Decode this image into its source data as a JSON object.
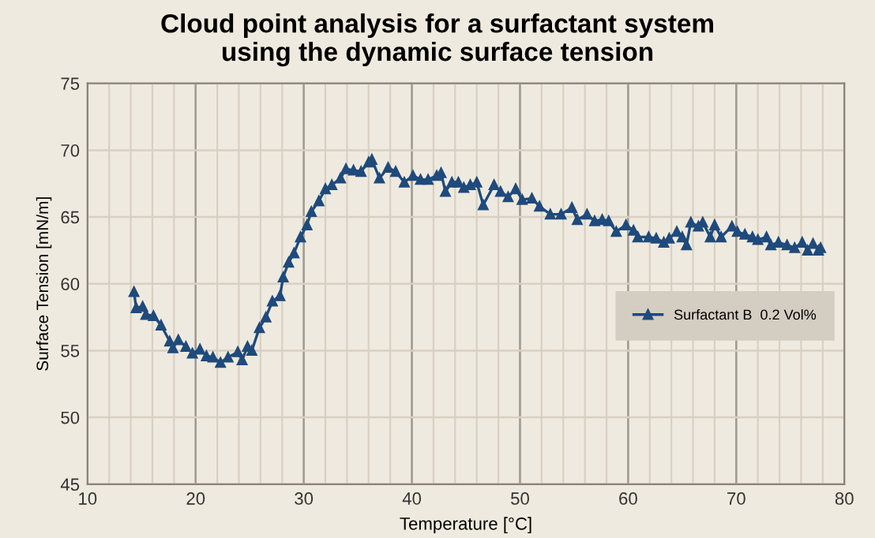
{
  "chart_data": {
    "type": "line",
    "title": "Cloud point analysis for a surfactant system\nusing the dynamic surface tension",
    "xlabel": "Temperature [°C]",
    "ylabel": "Surface Tension [mN/m]",
    "xlim": [
      10,
      80
    ],
    "xticks": [
      10,
      20,
      30,
      40,
      50,
      60,
      70,
      80
    ],
    "ylim": [
      45,
      75
    ],
    "yticks": [
      45,
      50,
      55,
      60,
      65,
      70,
      75
    ],
    "grid": true,
    "legend": "right",
    "marker": "triangle",
    "line_style": "solid",
    "series": [
      {
        "name": "Surfactant B  0.2 Vol%",
        "color": "#1f4a7c",
        "x": [
          14.3,
          14.5,
          15.1,
          15.4,
          16.1,
          16.8,
          17.6,
          17.9,
          18.4,
          19.1,
          19.7,
          20.4,
          21.0,
          21.6,
          22.3,
          23.0,
          23.9,
          24.3,
          24.8,
          25.2,
          25.9,
          26.5,
          27.1,
          27.8,
          28.1,
          28.6,
          29.1,
          29.7,
          30.3,
          30.7,
          31.4,
          32.0,
          32.6,
          33.4,
          33.9,
          34.6,
          35.3,
          36.0,
          36.3,
          37.0,
          37.8,
          38.5,
          39.3,
          40.1,
          40.8,
          41.5,
          42.3,
          42.7,
          43.1,
          43.7,
          44.3,
          44.8,
          45.4,
          46.0,
          46.6,
          47.6,
          48.2,
          48.9,
          49.6,
          50.2,
          51.1,
          51.8,
          52.8,
          53.8,
          54.8,
          55.3,
          56.2,
          56.9,
          57.6,
          58.2,
          58.9,
          59.8,
          60.5,
          60.9,
          61.9,
          62.6,
          63.3,
          63.8,
          64.5,
          65.0,
          65.4,
          65.8,
          66.5,
          66.9,
          67.6,
          68.0,
          68.6,
          69.6,
          70.1,
          70.8,
          71.5,
          72.0,
          72.8,
          73.2,
          73.9,
          74.7,
          75.4,
          76.1,
          76.6,
          77.1,
          77.6,
          77.8
        ],
        "values": [
          59.4,
          58.2,
          58.3,
          57.7,
          57.6,
          56.9,
          55.7,
          55.2,
          55.8,
          55.3,
          54.8,
          55.1,
          54.6,
          54.5,
          54.1,
          54.5,
          54.9,
          54.3,
          55.3,
          55.0,
          56.7,
          57.5,
          58.7,
          59.1,
          60.5,
          61.6,
          62.3,
          63.5,
          64.4,
          65.4,
          66.2,
          67.1,
          67.4,
          67.9,
          68.6,
          68.5,
          68.4,
          69.1,
          69.3,
          67.9,
          68.7,
          68.4,
          67.6,
          68.1,
          67.8,
          67.8,
          68.1,
          68.3,
          66.9,
          67.6,
          67.6,
          67.2,
          67.4,
          67.6,
          65.9,
          67.4,
          66.9,
          66.5,
          67.1,
          66.3,
          66.4,
          65.8,
          65.2,
          65.2,
          65.7,
          64.8,
          65.2,
          64.7,
          64.8,
          64.7,
          63.9,
          64.4,
          64.0,
          63.5,
          63.5,
          63.4,
          63.1,
          63.4,
          63.9,
          63.5,
          62.9,
          64.6,
          64.3,
          64.6,
          63.5,
          64.4,
          63.5,
          64.3,
          63.9,
          63.7,
          63.5,
          63.3,
          63.5,
          62.9,
          63.1,
          62.9,
          62.7,
          63.1,
          62.5,
          63.0,
          62.5,
          62.7
        ]
      }
    ]
  }
}
